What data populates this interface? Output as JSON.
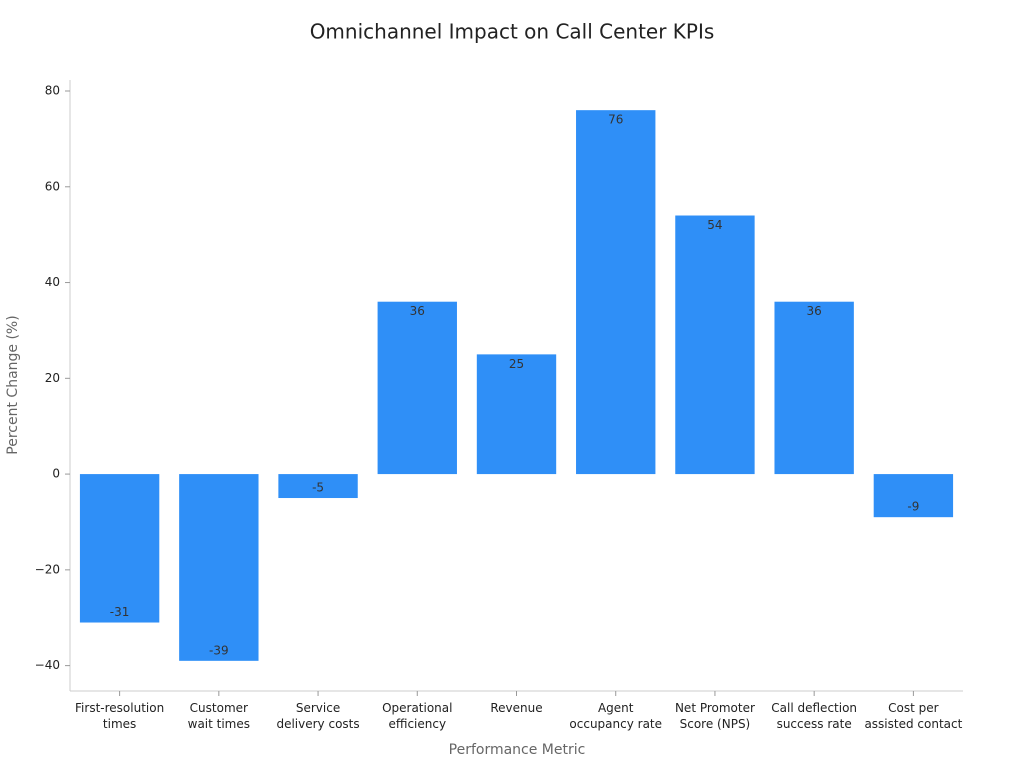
{
  "chart_data": {
    "type": "bar",
    "title": "Omnichannel Impact on Call Center KPIs",
    "x_label": "Performance Metric",
    "y_label": "Percent Change (%)",
    "categories": [
      "First-resolution\ntimes",
      "Customer\nwait times",
      "Service\ndelivery costs",
      "Operational\nefficiency",
      "Revenue",
      "Agent\noccupancy rate",
      "Net Promoter\nScore (NPS)",
      "Call deflection\nsuccess rate",
      "Cost per\nassisted contact"
    ],
    "values": [
      -31,
      -39,
      -5,
      36,
      25,
      76,
      54,
      36,
      -9
    ],
    "color": "#2f8ff7",
    "ylim": [
      -45.3,
      82.3
    ],
    "yticks": [
      {
        "value": -40,
        "label": "−40"
      },
      {
        "value": -20,
        "label": "−20"
      },
      0,
      20,
      40,
      60,
      80
    ],
    "grid": false
  }
}
